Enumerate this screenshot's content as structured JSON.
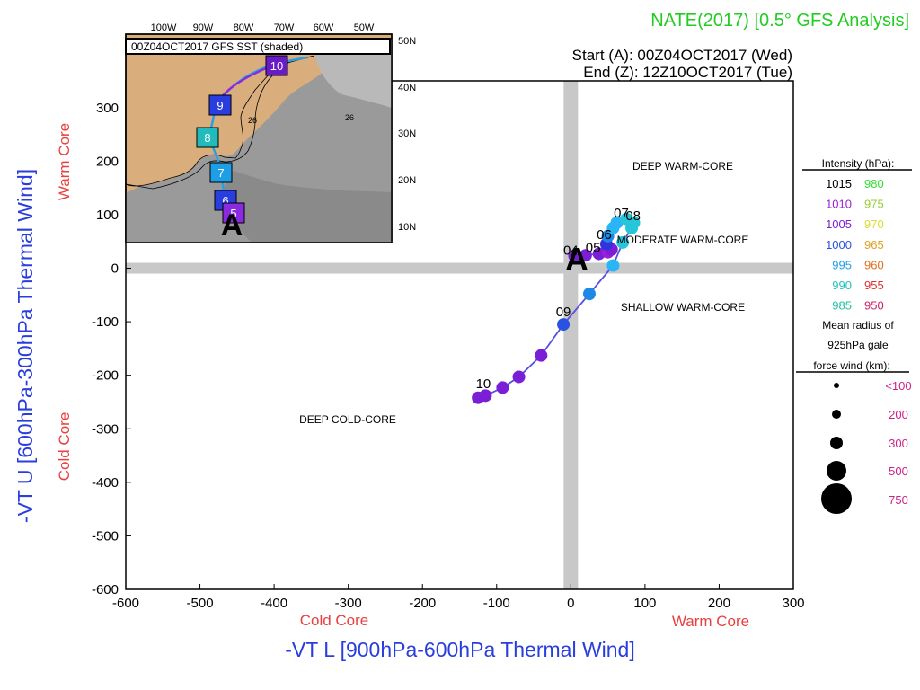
{
  "header": {
    "title": "NATE(2017) [0.5° GFS Analysis]",
    "start_label": "Start (A): 00Z04OCT2017 (Wed)",
    "end_label": "End (Z): 12Z10OCT2017 (Tue)"
  },
  "inset": {
    "label": "00Z04OCT2017 GFS SST (shaded)",
    "lon_labels": [
      "100W",
      "90W",
      "80W",
      "70W",
      "60W",
      "50W"
    ],
    "lat_labels": [
      "50N",
      "40N",
      "30N",
      "20N",
      "10N"
    ],
    "sst_contour_labels": [
      "26",
      "26"
    ],
    "track_markers": [
      "10",
      "9",
      "8",
      "7",
      "6",
      "5"
    ],
    "start_marker": "A"
  },
  "chart_data": {
    "type": "scatter",
    "title": "NATE(2017) [0.5° GFS Analysis]",
    "xlabel": "-V_T^L [900hPa-600hPa Thermal Wind]",
    "ylabel": "-V_T^U [600hPa-300hPa Thermal Wind]",
    "xlim": [
      -600,
      300
    ],
    "ylim": [
      -600,
      350
    ],
    "x_ticks": [
      "-600",
      "-500",
      "-400",
      "-300",
      "-200",
      "-100",
      "0",
      "100",
      "200",
      "300"
    ],
    "y_ticks": [
      "-600",
      "-500",
      "-400",
      "-300",
      "-200",
      "-100",
      "0",
      "100",
      "200",
      "300"
    ],
    "x_side_labels": {
      "left": "Cold Core",
      "right": "Warm Core"
    },
    "y_side_labels": {
      "bottom": "Cold Core",
      "top": "Warm Core"
    },
    "regions": [
      "DEEP WARM-CORE",
      "MODERATE WARM-CORE",
      "SHALLOW WARM-CORE",
      "DEEP COLD-CORE"
    ],
    "start_marker": "A",
    "day_labels": [
      {
        "text": "04",
        "x": 0,
        "y": 25
      },
      {
        "text": "05",
        "x": 30,
        "y": 30
      },
      {
        "text": "06",
        "x": 45,
        "y": 55
      },
      {
        "text": "07",
        "x": 68,
        "y": 95
      },
      {
        "text": "08",
        "x": 84,
        "y": 90
      },
      {
        "text": "09",
        "x": -10,
        "y": -90
      },
      {
        "text": "10",
        "x": -118,
        "y": -224
      }
    ],
    "series": [
      {
        "points": [
          {
            "x": 5,
            "y": 23,
            "color": "#7b1fd6"
          },
          {
            "x": 20,
            "y": 24,
            "color": "#7b1fd6"
          },
          {
            "x": 38,
            "y": 27,
            "color": "#7b1fd6"
          },
          {
            "x": 50,
            "y": 30,
            "color": "#9b1fd6"
          },
          {
            "x": 55,
            "y": 35,
            "color": "#7b1fd6"
          },
          {
            "x": 48,
            "y": 45,
            "color": "#3333dd"
          },
          {
            "x": 50,
            "y": 60,
            "color": "#1e88e5"
          },
          {
            "x": 57,
            "y": 75,
            "color": "#29b6f6"
          },
          {
            "x": 62,
            "y": 85,
            "color": "#29b6f6"
          },
          {
            "x": 75,
            "y": 92,
            "color": "#26c6da"
          },
          {
            "x": 85,
            "y": 85,
            "color": "#26c6da"
          },
          {
            "x": 82,
            "y": 75,
            "color": "#26c6da"
          },
          {
            "x": 70,
            "y": 48,
            "color": "#26c6da"
          },
          {
            "x": 57,
            "y": 5,
            "color": "#29b6f6"
          },
          {
            "x": 25,
            "y": -48,
            "color": "#1e88e5"
          },
          {
            "x": -10,
            "y": -105,
            "color": "#2a52e0"
          },
          {
            "x": -40,
            "y": -163,
            "color": "#7b1fd6"
          },
          {
            "x": -70,
            "y": -203,
            "color": "#7b1fd6"
          },
          {
            "x": -92,
            "y": -223,
            "color": "#7b1fd6"
          },
          {
            "x": -115,
            "y": -238,
            "color": "#7b1fd6"
          },
          {
            "x": -125,
            "y": -242,
            "color": "#7b1fd6"
          }
        ]
      }
    ]
  },
  "legend": {
    "intensity_title": "Intensity (hPa):",
    "intensity": [
      {
        "left": "1015",
        "left_color": "#000000",
        "right": "980",
        "right_color": "#33dd33"
      },
      {
        "left": "1010",
        "left_color": "#9b1fd6",
        "right": "975",
        "right_color": "#99cc33"
      },
      {
        "left": "1005",
        "left_color": "#7b1fd6",
        "right": "970",
        "right_color": "#dddd33"
      },
      {
        "left": "1000",
        "left_color": "#2a52e0",
        "right": "965",
        "right_color": "#e0a020"
      },
      {
        "left": "995",
        "left_color": "#1e9ee5",
        "right": "960",
        "right_color": "#e07020"
      },
      {
        "left": "990",
        "left_color": "#22c0c0",
        "right": "955",
        "right_color": "#e03030"
      },
      {
        "left": "985",
        "left_color": "#22c0a0",
        "right": "950",
        "right_color": "#cc2266"
      }
    ],
    "radius_title": [
      "Mean radius of",
      "925hPa gale",
      "force wind (km):"
    ],
    "radius": [
      "<100",
      "200",
      "300",
      "500",
      "750"
    ]
  }
}
